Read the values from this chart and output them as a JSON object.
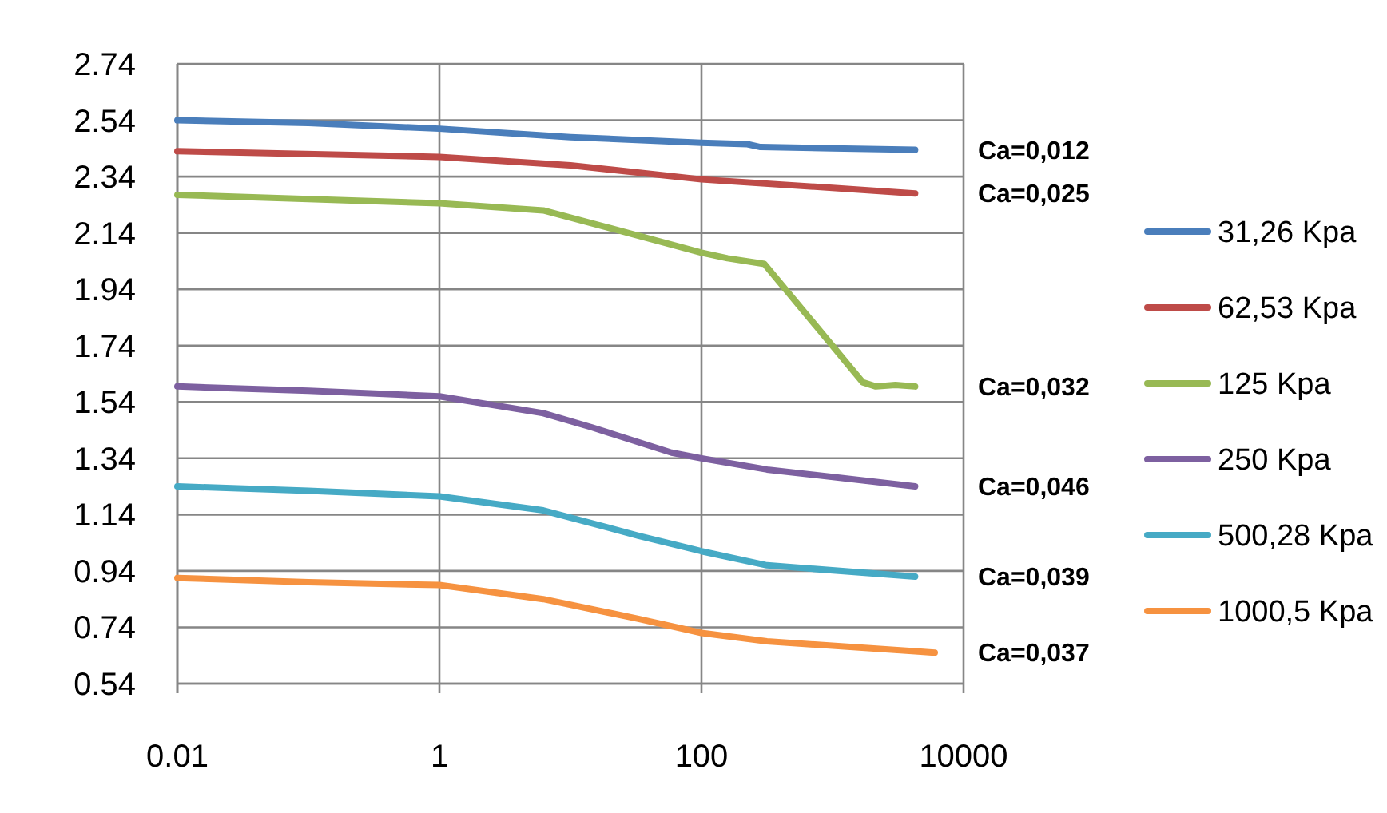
{
  "chart_data": {
    "type": "line",
    "log": "x",
    "grid": true,
    "legend": "right",
    "line_style": "solid",
    "xlim": [
      0.01,
      10000
    ],
    "xticks": [
      0.01,
      1,
      100,
      10000
    ],
    "ylim": [
      0.54,
      2.74
    ],
    "yticks": [
      {
        "value": 0.54,
        "label": "0.54"
      },
      {
        "value": 0.74,
        "label": "0.74"
      },
      {
        "value": 0.94,
        "label": "0.94"
      },
      {
        "value": 1.14,
        "label": "1.14"
      },
      {
        "value": 1.34,
        "label": "1.34"
      },
      {
        "value": 1.54,
        "label": "1.54"
      },
      {
        "value": 1.74,
        "label": "1.74"
      },
      {
        "value": 1.94,
        "label": "1.94"
      },
      {
        "value": 2.14,
        "label": "2.14"
      },
      {
        "value": 2.34,
        "label": "2.34"
      },
      {
        "value": 2.54,
        "label": "2.54"
      },
      {
        "value": 2.74,
        "label": "2.74"
      }
    ],
    "series": [
      {
        "name": "31,26 Kpa",
        "color": "#4a7ebb",
        "x": [
          0.01,
          0.1,
          1,
          10,
          100,
          224,
          282,
          1000,
          4270
        ],
        "values": [
          2.54,
          2.53,
          2.51,
          2.48,
          2.46,
          2.455,
          2.445,
          2.44,
          2.435
        ]
      },
      {
        "name": "62,53 Kpa",
        "color": "#be4b48",
        "x": [
          0.01,
          1,
          10,
          100,
          1000,
          4270
        ],
        "values": [
          2.43,
          2.41,
          2.38,
          2.33,
          2.3,
          2.28
        ]
      },
      {
        "name": "125 Kpa",
        "color": "#98b954",
        "x": [
          0.01,
          0.1,
          1,
          6.2,
          19,
          33,
          100,
          158,
          302,
          1700,
          2140,
          3020,
          4270
        ],
        "values": [
          2.275,
          2.26,
          2.245,
          2.22,
          2.16,
          2.13,
          2.07,
          2.05,
          2.03,
          1.61,
          1.595,
          1.6,
          1.595
        ]
      },
      {
        "name": "250 Kpa",
        "color": "#7d60a0",
        "x": [
          0.01,
          0.1,
          1,
          6.2,
          14.5,
          59,
          100,
          316,
          4270
        ],
        "values": [
          1.595,
          1.58,
          1.56,
          1.5,
          1.45,
          1.36,
          1.34,
          1.3,
          1.24
        ]
      },
      {
        "name": "500,28 Kpa",
        "color": "#46aac5",
        "x": [
          0.01,
          0.1,
          1,
          6.2,
          33,
          100,
          316,
          4270
        ],
        "values": [
          1.24,
          1.225,
          1.205,
          1.155,
          1.065,
          1.01,
          0.96,
          0.92
        ]
      },
      {
        "name": "1000,5 Kpa",
        "color": "#f69240",
        "x": [
          0.01,
          0.1,
          1,
          6.2,
          33,
          100,
          316,
          4270,
          6030
        ],
        "values": [
          0.915,
          0.9,
          0.89,
          0.84,
          0.77,
          0.72,
          0.69,
          0.655,
          0.65
        ]
      }
    ],
    "annotations": [
      "Ca=0,012",
      "Ca=0,025",
      "Ca=0,032",
      "Ca=0,046",
      "Ca=0,039",
      "Ca=0,037"
    ]
  }
}
